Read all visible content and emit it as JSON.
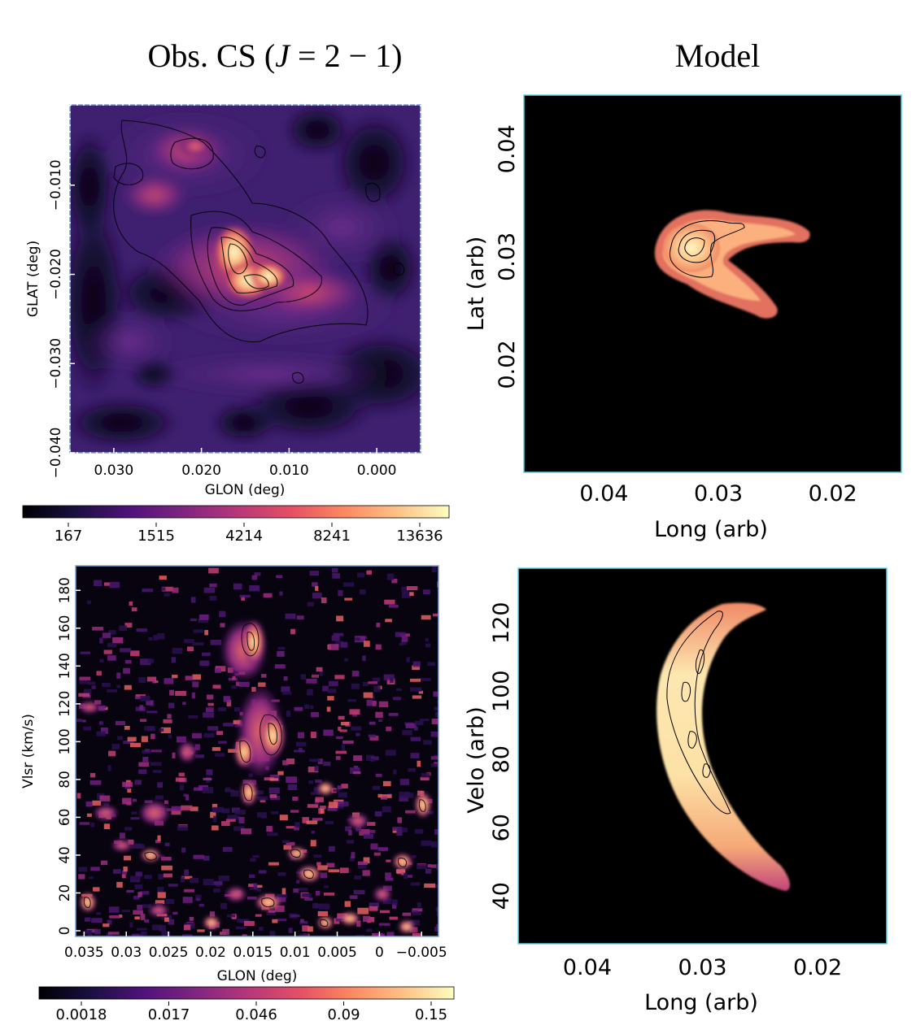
{
  "titles": {
    "left": {
      "main": "Obs. CS (",
      "j": "J",
      "eq": " = 2 − 1)"
    },
    "right": "Model"
  },
  "chart_data": [
    {
      "type": "heatmap",
      "panel": "observed-position-map",
      "xlabel": "GLON (deg)",
      "ylabel": "GLAT (deg)",
      "xlim": [
        0.035,
        -0.005
      ],
      "ylim": [
        -0.04,
        -0.001
      ],
      "xticks": [
        0.03,
        0.02,
        0.01,
        0.0
      ],
      "xtick_labels": [
        "0.030",
        "0.020",
        "0.010",
        "0.000"
      ],
      "yticks": [
        -0.01,
        -0.02,
        -0.03,
        -0.04
      ],
      "ytick_labels": [
        "−0.010",
        "−0.020",
        "−0.030",
        "−0.040"
      ],
      "colorbar": {
        "ticks": [
          "167",
          "1515",
          "4214",
          "8241",
          "13636"
        ]
      },
      "colormap": "magma",
      "contours": true
    },
    {
      "type": "heatmap",
      "panel": "model-position-map",
      "xlabel": "Long (arb)",
      "ylabel": "Lat (arb)",
      "xlim": [
        0.047,
        0.014
      ],
      "ylim": [
        0.01,
        0.045
      ],
      "xticks": [
        0.04,
        0.03,
        0.02
      ],
      "xtick_labels": [
        "0.04",
        "0.03",
        "0.02"
      ],
      "yticks": [
        0.04,
        0.03,
        0.02
      ],
      "ytick_labels": [
        "0.04",
        "0.03",
        "0.02"
      ],
      "colormap": "magma",
      "contours": true
    },
    {
      "type": "heatmap",
      "panel": "observed-velocity-map",
      "xlabel": "GLON (deg)",
      "ylabel": "Vlsr (km/s)",
      "xlim": [
        0.036,
        -0.007
      ],
      "ylim": [
        -3,
        193
      ],
      "xticks": [
        0.035,
        0.03,
        0.025,
        0.02,
        0.015,
        0.01,
        0.005,
        0,
        -0.005
      ],
      "xtick_labels": [
        "0.035",
        "0.03",
        "0.025",
        "0.02",
        "0.015",
        "0.01",
        "0.005",
        "0",
        "−0.005"
      ],
      "yticks": [
        0,
        20,
        40,
        60,
        80,
        100,
        120,
        140,
        160,
        180
      ],
      "ytick_labels": [
        "0",
        "20",
        "40",
        "60",
        "80",
        "100",
        "120",
        "140",
        "160",
        "180"
      ],
      "colorbar": {
        "ticks": [
          "0.0018",
          "0.017",
          "0.046",
          "0.09",
          "0.15"
        ]
      },
      "colormap": "magma",
      "contours": true
    },
    {
      "type": "heatmap",
      "panel": "model-velocity-map",
      "xlabel": "Long (arb)",
      "ylabel": "Velo (arb)",
      "xlim": [
        0.046,
        0.014
      ],
      "ylim": [
        26,
        136
      ],
      "xticks": [
        0.04,
        0.03,
        0.02
      ],
      "xtick_labels": [
        "0.04",
        "0.03",
        "0.02"
      ],
      "yticks": [
        40,
        60,
        80,
        100,
        120
      ],
      "ytick_labels": [
        "40",
        "60",
        "80",
        "100",
        "120"
      ],
      "colormap": "magma",
      "contours": true
    }
  ]
}
